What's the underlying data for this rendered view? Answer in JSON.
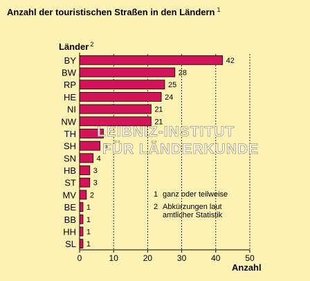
{
  "chart_data": {
    "type": "bar",
    "orientation": "horizontal",
    "title": "Anzahl der touristischen Straßen in den Ländern",
    "title_footnote": "1",
    "ylabel": "Länder",
    "ylabel_footnote": "2",
    "xlabel": "Anzahl",
    "xlim": [
      0,
      50
    ],
    "xticks": [
      0,
      10,
      20,
      30,
      40,
      50
    ],
    "grid": "vertical dashed",
    "categories": [
      "BY",
      "BW",
      "RP",
      "HE",
      "NI",
      "NW",
      "TH",
      "SH",
      "SN",
      "HB",
      "ST",
      "MV",
      "BE",
      "BB",
      "HH",
      "SL"
    ],
    "values": [
      42,
      28,
      25,
      24,
      21,
      21,
      7,
      6,
      4,
      3,
      3,
      2,
      1,
      1,
      1,
      1
    ],
    "bar_color": "#d4145a",
    "notes": [
      {
        "num": "1",
        "lines": [
          "ganz oder teilweise"
        ]
      },
      {
        "num": "2",
        "lines": [
          "Abkürzungen laut",
          "amtlicher Statistik"
        ]
      }
    ]
  },
  "watermark": {
    "line1": "LEIBNIZ-INSTITUT",
    "line2": "FÜR LÄNDERKUNDE"
  }
}
